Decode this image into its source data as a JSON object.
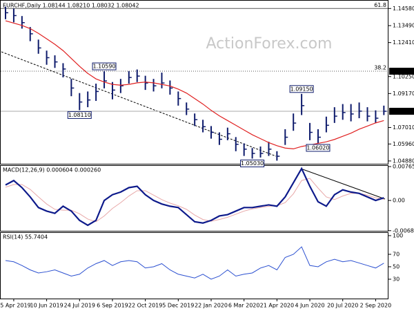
{
  "chart_data": [
    {
      "type": "ohlc",
      "title": "EURCHF,Daily 1.08144 1.08210 1.08032 1.08042",
      "watermark": "ActionForex.com",
      "categories": [
        null,
        "25 Apr 2019",
        null,
        null,
        null,
        "10 Jun 2019",
        null,
        null,
        null,
        "24 Jul 2019",
        null,
        null,
        null,
        "6 Sep 2019",
        null,
        null,
        null,
        "22 Oct 2019",
        null,
        null,
        null,
        "5 Dec 2019",
        null,
        null,
        null,
        "22 Jan 2020",
        null,
        null,
        null,
        "6 Mar 2020",
        null,
        null,
        null,
        "21 Apr 2020",
        null,
        null,
        null,
        "4 Jun 2020",
        null,
        null,
        null,
        "20 Jul 2020",
        null,
        null,
        null,
        "2 Sep 2020",
        null
      ],
      "high": [
        1.147,
        1.1458,
        1.141,
        1.134,
        1.126,
        1.119,
        1.116,
        1.111,
        1.101,
        1.092,
        1.093,
        1.098,
        1.1059,
        1.099,
        1.101,
        1.106,
        1.107,
        1.103,
        1.101,
        1.105,
        1.1,
        1.093,
        1.086,
        1.079,
        1.075,
        1.071,
        1.067,
        1.07,
        1.064,
        1.06,
        1.057,
        1.058,
        1.061,
        1.055,
        1.069,
        1.079,
        1.0915,
        1.073,
        1.069,
        1.077,
        1.083,
        1.085,
        1.085,
        1.086,
        1.083,
        1.081,
        1.084
      ],
      "low": [
        1.139,
        1.137,
        1.133,
        1.125,
        1.117,
        1.11,
        1.108,
        1.102,
        1.09,
        1.0811,
        1.083,
        1.087,
        1.095,
        1.088,
        1.092,
        1.098,
        1.099,
        1.094,
        1.093,
        1.095,
        1.091,
        1.084,
        1.078,
        1.071,
        1.067,
        1.063,
        1.059,
        1.062,
        1.055,
        1.052,
        1.0503,
        1.051,
        1.052,
        1.049,
        1.059,
        1.068,
        1.078,
        1.062,
        1.0602,
        1.067,
        1.073,
        1.075,
        1.074,
        1.076,
        1.074,
        1.073,
        1.078
      ],
      "close": [
        1.1431,
        1.1413,
        1.1368,
        1.1297,
        1.1207,
        1.1145,
        1.1118,
        1.1073,
        1.0952,
        1.0863,
        1.0876,
        1.093,
        1.0997,
        1.0939,
        1.0966,
        1.1019,
        1.1028,
        1.0984,
        1.0966,
        1.0984,
        1.0952,
        1.0885,
        1.0818,
        1.0751,
        1.0706,
        1.067,
        1.0626,
        1.0661,
        1.0594,
        1.0563,
        1.0536,
        1.0536,
        1.0563,
        1.0518,
        1.0639,
        1.0729,
        1.084,
        1.067,
        1.0639,
        1.0715,
        1.0773,
        1.0796,
        1.0787,
        1.0805,
        1.0773,
        1.076,
        1.08042
      ],
      "ma": [
        1.138,
        1.1365,
        1.135,
        1.133,
        1.13,
        1.1265,
        1.123,
        1.119,
        1.114,
        1.109,
        1.1045,
        1.101,
        1.099,
        1.0975,
        1.097,
        1.0975,
        1.0985,
        1.099,
        1.0985,
        1.0975,
        1.0965,
        1.0945,
        1.092,
        1.0885,
        1.085,
        1.081,
        1.0775,
        1.0745,
        1.0715,
        1.0685,
        1.0655,
        1.063,
        1.0605,
        1.0585,
        1.057,
        1.0565,
        1.058,
        1.059,
        1.06,
        1.061,
        1.0625,
        1.0645,
        1.0665,
        1.069,
        1.071,
        1.073,
        1.0745
      ],
      "color": "#0d1a6b",
      "ma_color": "#e02020",
      "ylim": [
        1.047,
        1.1512
      ],
      "yticks": [
        {
          "value": 1.1458,
          "label": "1.14580"
        },
        {
          "value": 1.1349,
          "label": "1.13490"
        },
        {
          "value": 1.1241,
          "label": "1.12410"
        },
        {
          "value": 1.1025,
          "label": "1.10250"
        },
        {
          "value": 1.0917,
          "label": "1.09170"
        },
        {
          "value": 1.0701,
          "label": "1.07010"
        },
        {
          "value": 1.0596,
          "label": "1.05960"
        },
        {
          "value": 1.0488,
          "label": "1.04880"
        }
      ],
      "fib_levels": [
        {
          "ratio": 61.8,
          "price": {
            "value": 1.1458,
            "label": "1.14580"
          }
        },
        {
          "ratio": 38.2,
          "price": {
            "value": 1.1059,
            "label": "1.10590"
          }
        }
      ],
      "last_price": {
        "value": 1.08042,
        "label": "1.08042"
      },
      "annotations": [
        {
          "value": 1.1059,
          "label": "1.10590"
        },
        {
          "value": 1.0811,
          "label": "1.08110"
        },
        {
          "value": 1.0915,
          "label": "1.09150"
        },
        {
          "value": 1.0602,
          "label": "1.06020"
        },
        {
          "value": 1.0503,
          "label": "1.05030"
        }
      ]
    },
    {
      "type": "macd",
      "title": "MACD(12,26,9) 0.000604 0.000260",
      "series": [
        {
          "color": "#0d1a8b",
          "values": [
            0.0035,
            0.0045,
            0.0029,
            0.0008,
            -0.0016,
            -0.0024,
            -0.0029,
            -0.0013,
            -0.0024,
            -0.0045,
            -0.0056,
            -0.0045,
            0.0,
            0.0013,
            0.0019,
            0.0029,
            0.0032,
            0.0013,
            0.0,
            -0.0008,
            -0.0013,
            -0.0016,
            -0.0032,
            -0.0048,
            -0.0051,
            -0.0045,
            -0.0035,
            -0.0032,
            -0.0024,
            -0.0016,
            -0.0016,
            -0.0013,
            -0.001,
            -0.0013,
            0.0008,
            0.004,
            0.0072,
            0.0032,
            -0.0003,
            -0.0013,
            0.0013,
            0.0024,
            0.0019,
            0.0016,
            0.0008,
            0.0,
            0.000604
          ]
        },
        {
          "color": "#e8a8a8",
          "values": [
            0.003,
            0.0036,
            0.0036,
            0.0025,
            0.0008,
            -0.0008,
            -0.002,
            -0.0022,
            -0.0022,
            -0.003,
            -0.0042,
            -0.0048,
            -0.0035,
            -0.0018,
            -0.0005,
            0.001,
            0.0022,
            0.0022,
            0.0012,
            0.0002,
            -0.0006,
            -0.0012,
            -0.002,
            -0.0033,
            -0.0043,
            -0.0047,
            -0.0043,
            -0.0038,
            -0.0031,
            -0.0024,
            -0.0019,
            -0.0016,
            -0.0013,
            -0.0012,
            -0.0005,
            0.0015,
            0.0045,
            0.005,
            0.0028,
            0.0008,
            0.0002,
            0.001,
            0.0016,
            0.0016,
            0.0012,
            0.0006,
            0.00026
          ]
        }
      ],
      "ylim": [
        -0.00686,
        0.00797
      ],
      "yticks": [
        0.007655,
        {
          "value": 0,
          "label": "0.00"
        },
        -0.006822
      ]
    },
    {
      "type": "line",
      "title": "RSI(14) 55.7404",
      "values": [
        60,
        58,
        52,
        45,
        40,
        42,
        45,
        40,
        35,
        38,
        48,
        55,
        60,
        52,
        58,
        60,
        58,
        48,
        50,
        55,
        45,
        38,
        35,
        32,
        38,
        30,
        35,
        45,
        35,
        38,
        40,
        48,
        52,
        45,
        65,
        70,
        82,
        52,
        50,
        58,
        62,
        58,
        60,
        56,
        52,
        48,
        55.7404
      ],
      "color": "#2a4fd0",
      "ylim": [
        0,
        104.4
      ],
      "yticks": [
        100,
        70,
        50,
        30
      ]
    }
  ]
}
